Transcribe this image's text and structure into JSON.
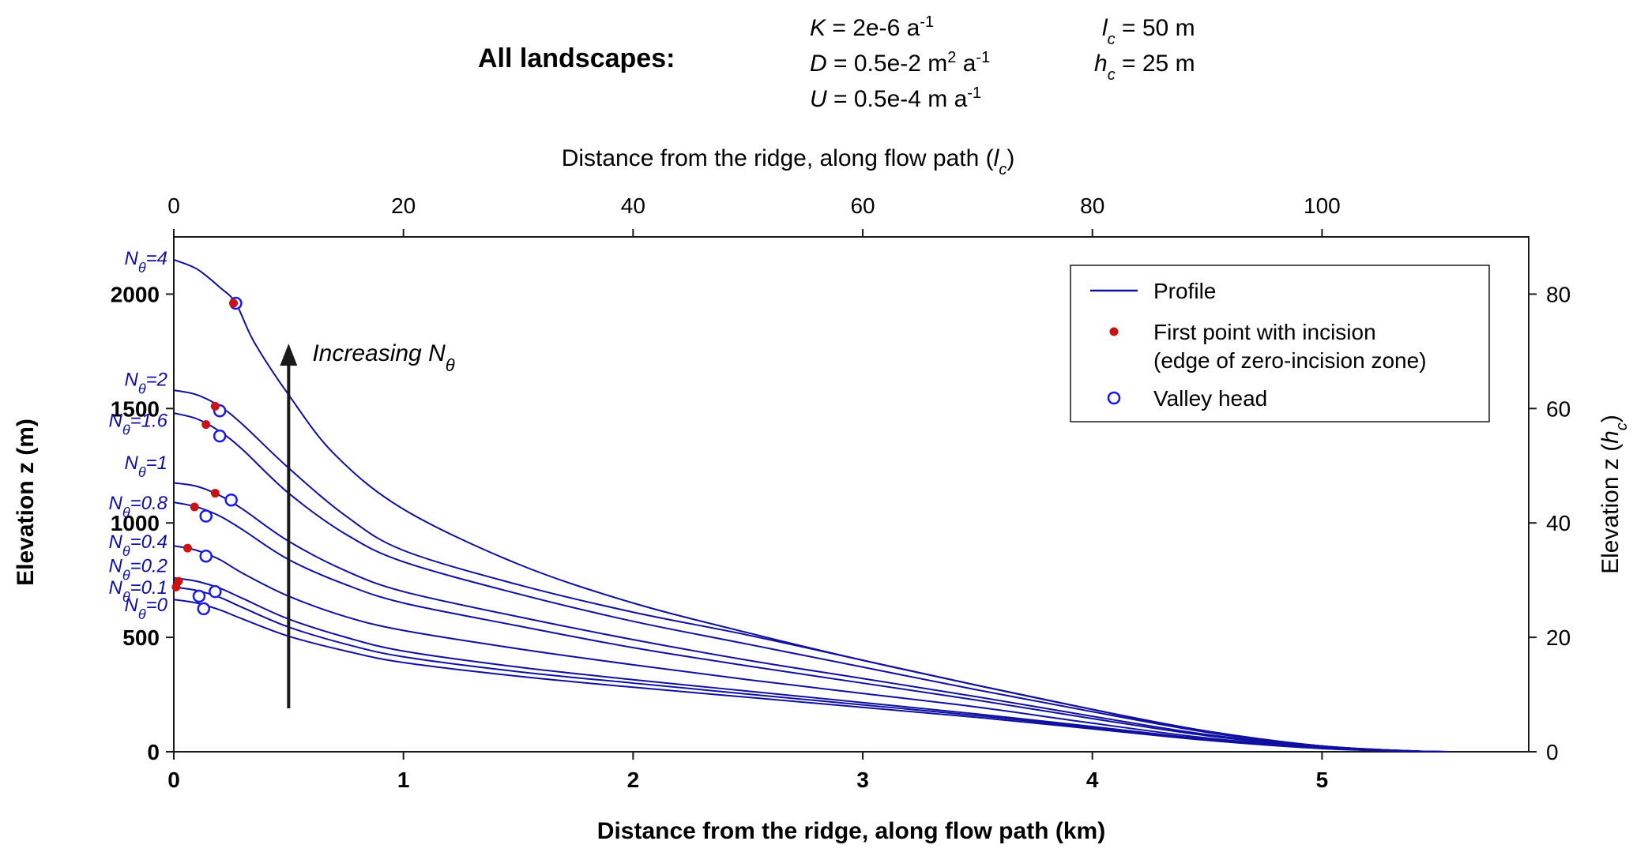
{
  "parameters": {
    "title": "All landscapes:",
    "items": [
      {
        "sym": "K",
        "eq": " = 2e-6 a",
        "sup": "-1"
      },
      {
        "sym": "D",
        "eq": " = 0.5e-2 m",
        "sup": "2",
        "after": " a",
        "sup2": "-1"
      },
      {
        "sym": "U",
        "eq": " = 0.5e-4 m a",
        "sup": "-1"
      },
      {
        "sym": "l",
        "sub": "c",
        "eq": " = 50 m"
      },
      {
        "sym": "h",
        "sub": "c",
        "eq": " = 25 m"
      }
    ]
  },
  "chart_data": {
    "type": "line",
    "xlabel": "Distance from the ridge, along flow path   (km)",
    "ylabel": "Elevation   z (m)",
    "x2label": "Distance from the ridge, along flow path   (",
    "x2label_sym": "l",
    "x2label_sub": "c",
    "y2label": "Elevation   z (",
    "y2label_sym": "h",
    "y2label_sub": "c",
    "xlim": [
      0,
      5.9
    ],
    "ylim": [
      0,
      2250
    ],
    "xticks": [
      0,
      1,
      2,
      3,
      4,
      5
    ],
    "yticks": [
      0,
      500,
      1000,
      1500,
      2000
    ],
    "x2ticks": [
      0,
      20,
      40,
      60,
      80,
      100
    ],
    "y2ticks": [
      0,
      20,
      40,
      60,
      80
    ],
    "x2_scale_m_per_unit": 50,
    "y2_scale_m_per_unit": 25,
    "line_color": "#1010a0",
    "incision_color": "#c81414",
    "valley_color": "#1a1ae0",
    "annotation": {
      "text": "Increasing N",
      "sub": "θ",
      "x": 0.5,
      "y_start": 190,
      "y_end": 1770
    },
    "legend": {
      "position": "top-right",
      "entries": [
        {
          "type": "line",
          "label": "Profile"
        },
        {
          "type": "red-dot",
          "label": "First point with incision",
          "label2": "(edge of zero-incision zone)"
        },
        {
          "type": "blue-circle",
          "label": "Valley head"
        }
      ]
    },
    "series": [
      {
        "name": "N",
        "sub": "θ",
        "val": "=4",
        "label_y": 2130,
        "points": [
          [
            0,
            2150
          ],
          [
            0.1,
            2110
          ],
          [
            0.2,
            2030
          ],
          [
            0.27,
            1960
          ],
          [
            0.35,
            1790
          ],
          [
            0.5,
            1560
          ],
          [
            0.7,
            1300
          ],
          [
            1.0,
            1060
          ],
          [
            1.5,
            820
          ],
          [
            2.0,
            650
          ],
          [
            2.5,
            520
          ],
          [
            3.0,
            400
          ],
          [
            3.5,
            290
          ],
          [
            4.0,
            185
          ],
          [
            4.5,
            85
          ],
          [
            5.0,
            25
          ],
          [
            5.4,
            3
          ],
          [
            5.55,
            0
          ]
        ],
        "incision": [
          0.26,
          1960
        ],
        "valley": [
          0.27,
          1960
        ]
      },
      {
        "name": "N",
        "sub": "θ",
        "val": "=2",
        "label_y": 1600,
        "points": [
          [
            0,
            1580
          ],
          [
            0.1,
            1560
          ],
          [
            0.2,
            1510
          ],
          [
            0.3,
            1430
          ],
          [
            0.5,
            1240
          ],
          [
            0.75,
            1030
          ],
          [
            1.0,
            880
          ],
          [
            1.5,
            730
          ],
          [
            2.0,
            610
          ],
          [
            2.5,
            510
          ],
          [
            3.0,
            400
          ],
          [
            3.5,
            290
          ],
          [
            4.0,
            185
          ],
          [
            4.5,
            90
          ],
          [
            5.0,
            25
          ],
          [
            5.4,
            3
          ],
          [
            5.55,
            0
          ]
        ],
        "incision": [
          0.18,
          1510
        ],
        "valley": [
          0.2,
          1490
        ]
      },
      {
        "name": "N",
        "sub": "θ",
        "val": "=1.6",
        "label_y": 1420,
        "points": [
          [
            0,
            1480
          ],
          [
            0.1,
            1455
          ],
          [
            0.2,
            1400
          ],
          [
            0.3,
            1320
          ],
          [
            0.5,
            1130
          ],
          [
            0.75,
            950
          ],
          [
            1.0,
            830
          ],
          [
            1.5,
            690
          ],
          [
            2.0,
            570
          ],
          [
            2.5,
            470
          ],
          [
            3.0,
            370
          ],
          [
            3.5,
            270
          ],
          [
            4.0,
            175
          ],
          [
            4.5,
            85
          ],
          [
            5.0,
            25
          ],
          [
            5.4,
            3
          ],
          [
            5.55,
            0
          ]
        ],
        "incision": [
          0.14,
          1430
        ],
        "valley": [
          0.2,
          1380
        ]
      },
      {
        "name": "N",
        "sub": "θ",
        "val": "=1",
        "label_y": 1235,
        "points": [
          [
            0,
            1175
          ],
          [
            0.1,
            1160
          ],
          [
            0.2,
            1120
          ],
          [
            0.3,
            1060
          ],
          [
            0.5,
            920
          ],
          [
            0.75,
            790
          ],
          [
            1.0,
            700
          ],
          [
            1.5,
            590
          ],
          [
            2.0,
            490
          ],
          [
            2.5,
            400
          ],
          [
            3.0,
            320
          ],
          [
            3.5,
            240
          ],
          [
            4.0,
            155
          ],
          [
            4.5,
            75
          ],
          [
            5.0,
            22
          ],
          [
            5.4,
            3
          ],
          [
            5.55,
            0
          ]
        ],
        "incision": [
          0.18,
          1130
        ],
        "valley": [
          0.25,
          1100
        ]
      },
      {
        "name": "N",
        "sub": "θ",
        "val": "=0.8",
        "label_y": 1060,
        "points": [
          [
            0,
            1090
          ],
          [
            0.1,
            1070
          ],
          [
            0.2,
            1030
          ],
          [
            0.3,
            970
          ],
          [
            0.5,
            840
          ],
          [
            0.75,
            730
          ],
          [
            1.0,
            650
          ],
          [
            1.5,
            550
          ],
          [
            2.0,
            455
          ],
          [
            2.5,
            375
          ],
          [
            3.0,
            300
          ],
          [
            3.5,
            225
          ],
          [
            4.0,
            145
          ],
          [
            4.5,
            70
          ],
          [
            5.0,
            20
          ],
          [
            5.4,
            3
          ],
          [
            5.55,
            0
          ]
        ],
        "incision": [
          0.09,
          1070
        ],
        "valley": [
          0.14,
          1030
        ]
      },
      {
        "name": "N",
        "sub": "θ",
        "val": "=0.4",
        "label_y": 890,
        "points": [
          [
            0,
            900
          ],
          [
            0.1,
            880
          ],
          [
            0.2,
            840
          ],
          [
            0.3,
            780
          ],
          [
            0.5,
            680
          ],
          [
            0.75,
            590
          ],
          [
            1.0,
            530
          ],
          [
            1.5,
            450
          ],
          [
            2.0,
            380
          ],
          [
            2.5,
            315
          ],
          [
            3.0,
            255
          ],
          [
            3.5,
            195
          ],
          [
            4.0,
            125
          ],
          [
            4.5,
            60
          ],
          [
            5.0,
            18
          ],
          [
            5.4,
            3
          ],
          [
            5.55,
            0
          ]
        ],
        "incision": [
          0.06,
          890
        ],
        "valley": [
          0.14,
          855
        ]
      },
      {
        "name": "N",
        "sub": "θ",
        "val": "=0.2",
        "label_y": 785,
        "points": [
          [
            0,
            760
          ],
          [
            0.1,
            745
          ],
          [
            0.2,
            715
          ],
          [
            0.3,
            670
          ],
          [
            0.5,
            580
          ],
          [
            0.75,
            500
          ],
          [
            1.0,
            440
          ],
          [
            1.5,
            370
          ],
          [
            2.0,
            315
          ],
          [
            2.5,
            265
          ],
          [
            3.0,
            215
          ],
          [
            3.5,
            165
          ],
          [
            4.0,
            110
          ],
          [
            4.5,
            55
          ],
          [
            5.0,
            16
          ],
          [
            5.4,
            2
          ],
          [
            5.55,
            0
          ]
        ],
        "incision": [
          0.02,
          745
        ],
        "valley": [
          0.18,
          700
        ]
      },
      {
        "name": "N",
        "sub": "θ",
        "val": "=0.1",
        "label_y": 690,
        "points": [
          [
            0,
            720
          ],
          [
            0.1,
            705
          ],
          [
            0.2,
            675
          ],
          [
            0.3,
            630
          ],
          [
            0.5,
            545
          ],
          [
            0.75,
            470
          ],
          [
            1.0,
            415
          ],
          [
            1.5,
            350
          ],
          [
            2.0,
            300
          ],
          [
            2.5,
            252
          ],
          [
            3.0,
            205
          ],
          [
            3.5,
            158
          ],
          [
            4.0,
            105
          ],
          [
            4.5,
            52
          ],
          [
            5.0,
            15
          ],
          [
            5.4,
            2
          ],
          [
            5.55,
            0
          ]
        ],
        "incision": [
          0.01,
          720
        ],
        "valley": [
          0.11,
          680
        ]
      },
      {
        "name": "N",
        "sub": "θ",
        "val": "=0",
        "label_y": 615,
        "points": [
          [
            0,
            665
          ],
          [
            0.1,
            650
          ],
          [
            0.2,
            620
          ],
          [
            0.3,
            580
          ],
          [
            0.5,
            505
          ],
          [
            0.75,
            440
          ],
          [
            1.0,
            390
          ],
          [
            1.5,
            330
          ],
          [
            2.0,
            282
          ],
          [
            2.5,
            238
          ],
          [
            3.0,
            194
          ],
          [
            3.5,
            150
          ],
          [
            4.0,
            100
          ],
          [
            4.5,
            50
          ],
          [
            5.0,
            14
          ],
          [
            5.4,
            2
          ],
          [
            5.55,
            0
          ]
        ],
        "valley": [
          0.13,
          625
        ]
      }
    ]
  }
}
